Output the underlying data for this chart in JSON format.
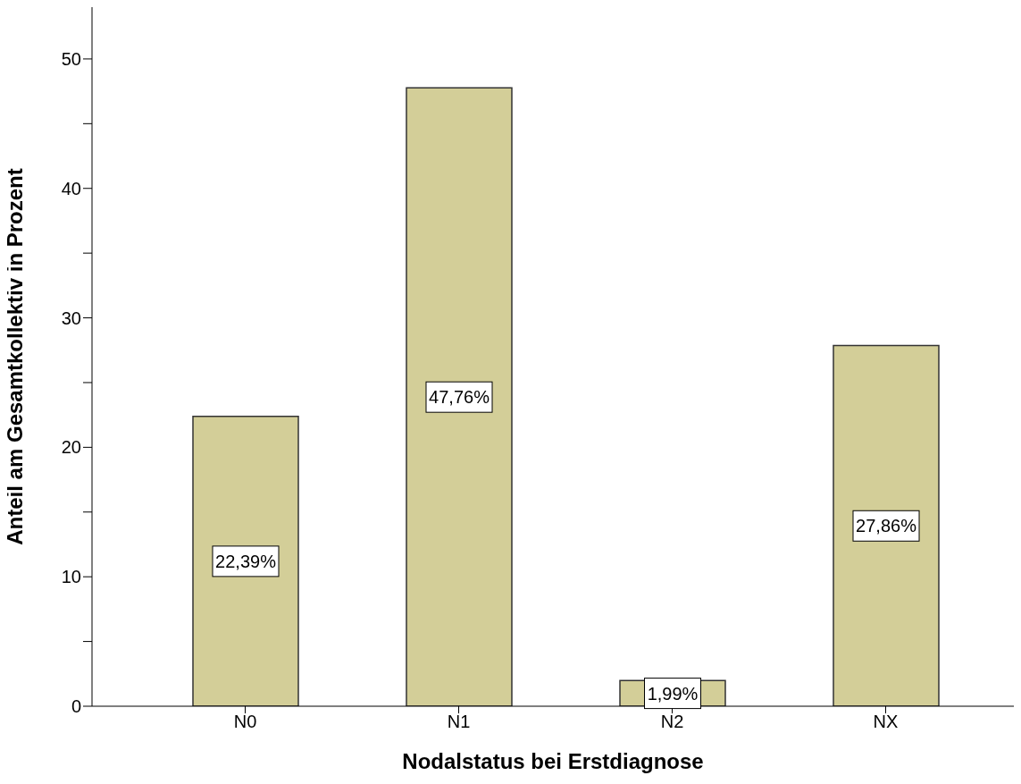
{
  "chart_data": {
    "type": "bar",
    "xlabel": "Nodalstatus bei Erstdiagnose",
    "ylabel": "Anteil am Gesamtkollektiv in Prozent",
    "categories": [
      "N0",
      "N1",
      "N2",
      "NX"
    ],
    "values": [
      22.39,
      47.76,
      1.99,
      27.86
    ],
    "value_labels": [
      "22,39%",
      "47,76%",
      "1,99%",
      "27,86%"
    ],
    "color": "#d3ce98",
    "ylim": [
      0,
      54
    ],
    "yticks": [
      0,
      {
        "value": 5,
        "label": null
      },
      10,
      {
        "value": 15,
        "label": null
      },
      20,
      {
        "value": 25,
        "label": null
      },
      30,
      {
        "value": 35,
        "label": null
      },
      40,
      {
        "value": 45,
        "label": null
      },
      50
    ],
    "grid": false,
    "legend": false
  }
}
